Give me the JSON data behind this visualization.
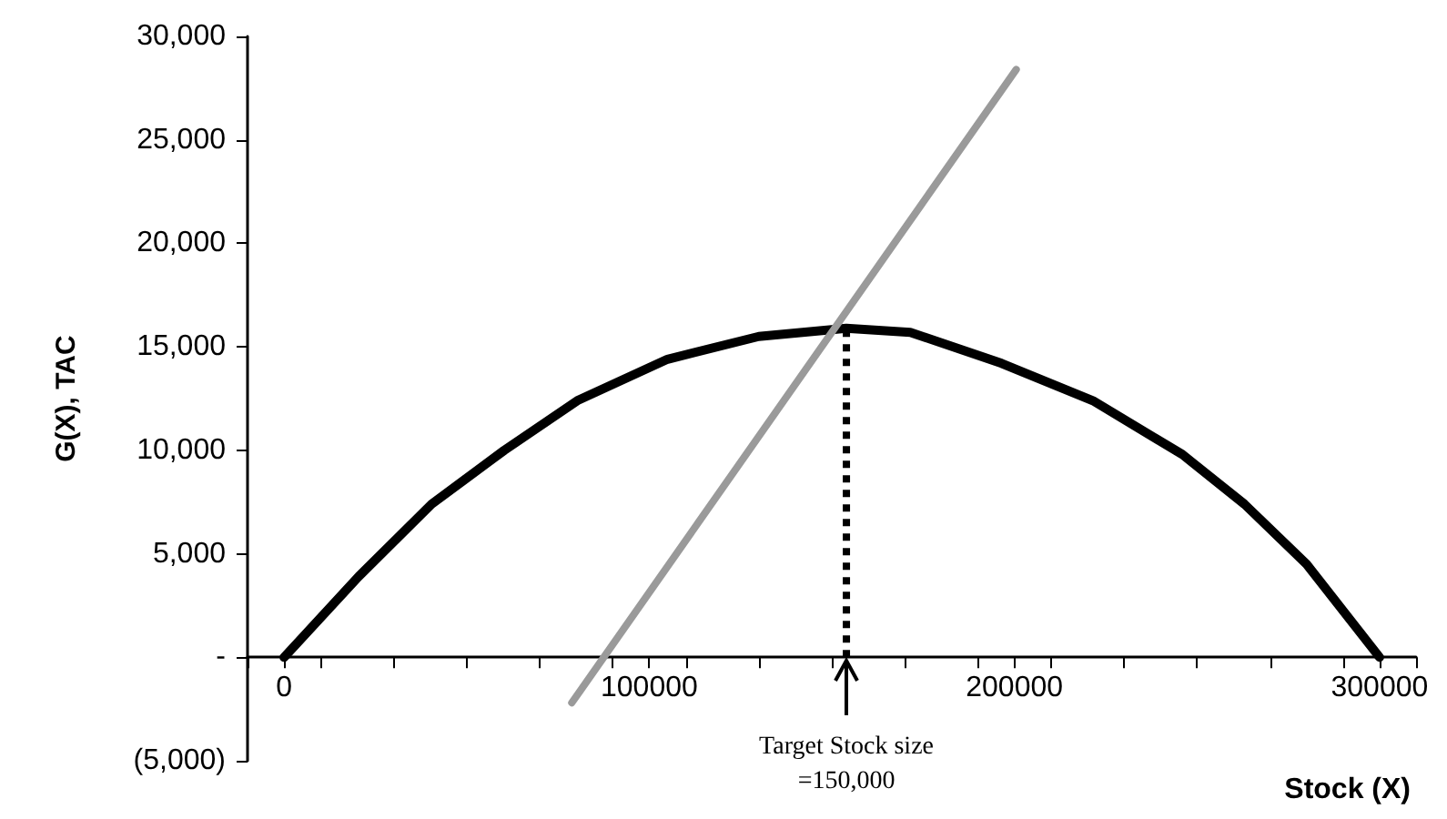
{
  "chart_data": {
    "type": "line",
    "xlabel": "Stock (X)",
    "ylabel": "G(X), TAC",
    "xlim": [
      -10000,
      310000
    ],
    "xticks": [
      {
        "value": -10000,
        "label": null
      },
      0,
      {
        "value": 10000,
        "label": null
      },
      {
        "value": 30000,
        "label": null
      },
      {
        "value": 50000,
        "label": null
      },
      {
        "value": 70000,
        "label": null
      },
      {
        "value": 90000,
        "label": null
      },
      100000,
      {
        "value": 110000,
        "label": null
      },
      {
        "value": 130000,
        "label": null
      },
      {
        "value": 150000,
        "label": null
      },
      {
        "value": 170000,
        "label": null
      },
      {
        "value": 190000,
        "label": null
      },
      200000,
      {
        "value": 210000,
        "label": null
      },
      {
        "value": 230000,
        "label": null
      },
      {
        "value": 250000,
        "label": null
      },
      {
        "value": 270000,
        "label": null
      },
      {
        "value": 290000,
        "label": null
      },
      300000,
      {
        "value": 310000,
        "label": null
      }
    ],
    "ylim": [
      -5000,
      30000
    ],
    "yticks": [
      {
        "value": -5000,
        "label": "(5,000)"
      },
      {
        "value": 0,
        "label": "-"
      },
      {
        "value": 5000,
        "label": "5,000"
      },
      {
        "value": 10000,
        "label": "10,000"
      },
      {
        "value": 15000,
        "label": "15,000"
      },
      {
        "value": 20000,
        "label": "20,000"
      },
      {
        "value": 25000,
        "label": "25,000"
      },
      {
        "value": 30000,
        "label": "30,000"
      }
    ],
    "grid": false,
    "marker": "none",
    "series": [
      {
        "color": "#000000",
        "x": [
          0,
          20400,
          40400,
          60300,
          80300,
          105000,
          130000,
          154000,
          171500,
          196500,
          221500,
          246000,
          263000,
          280000,
          300000
        ],
        "values": [
          0,
          3900,
          7400,
          10000,
          12400,
          14400,
          15500,
          15900,
          15700,
          14200,
          12400,
          9800,
          7400,
          4500,
          0
        ]
      },
      {
        "color": "#9a9a9a",
        "x": [
          78800,
          200500
        ],
        "values": [
          -2200,
          28400
        ]
      },
      {
        "color": "#000000",
        "line_style": "dotted",
        "x": [
          154000,
          154000
        ],
        "values": [
          0,
          15900
        ]
      }
    ],
    "annotations": [
      {
        "text": "Target Stock size\n=150,000",
        "x": 154000,
        "y": 0
      }
    ]
  }
}
